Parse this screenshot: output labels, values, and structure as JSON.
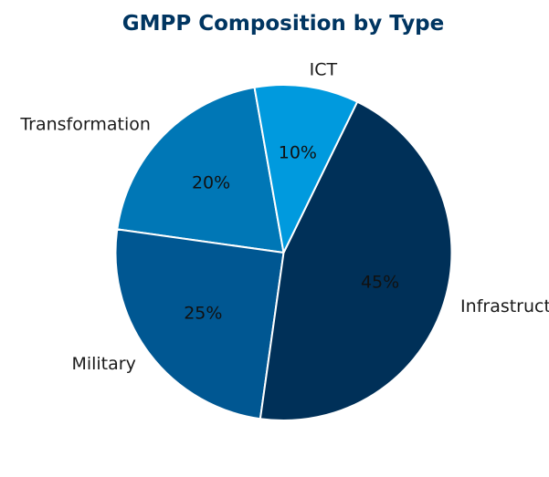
{
  "chart_data": {
    "type": "pie",
    "title": "GMPP Composition by Type",
    "categories": [
      "Transformation",
      "Military",
      "Infrastructure",
      "ICT"
    ],
    "values": [
      20,
      25,
      45,
      10
    ],
    "value_labels": [
      "20%",
      "25%",
      "45%",
      "10%"
    ],
    "colors": [
      "#0077b6",
      "#005792",
      "#003058",
      "#009ade"
    ],
    "start_angle_deg": 100,
    "direction": "counterclockwise",
    "legend": "none"
  }
}
